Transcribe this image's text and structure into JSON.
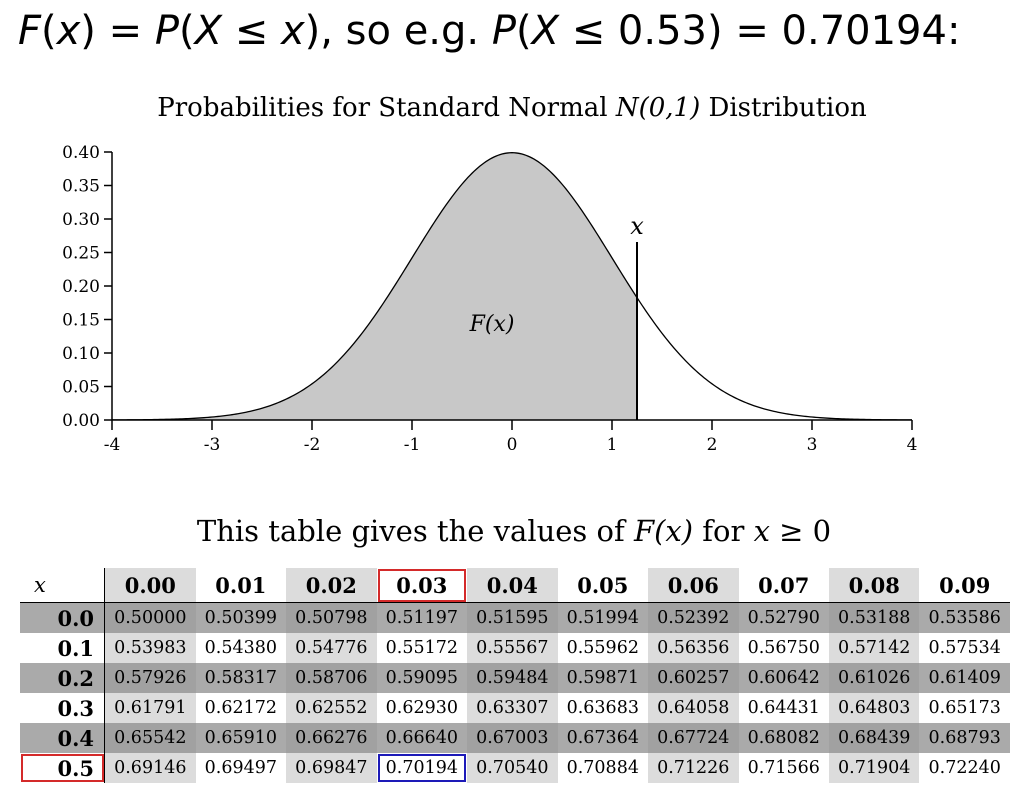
{
  "header": {
    "parts": [
      "F",
      "(",
      "x",
      ") = ",
      "P",
      "(",
      "X",
      " ≤ ",
      "x",
      "), so e.g. ",
      "P",
      "(",
      "X",
      " ≤ 0.53) = 0.70194:"
    ]
  },
  "chart_data": {
    "type": "area",
    "title_part1": "Probabilities for Standard Normal ",
    "title_part2": "N(0,1)",
    "title_part3": " Distribution",
    "xlim": [
      -4,
      4
    ],
    "ylim": [
      0,
      0.4
    ],
    "x_ticks": [
      -4,
      -3,
      -2,
      -1,
      0,
      1,
      2,
      3,
      4
    ],
    "x_tick_labels": [
      "-4",
      "-3",
      "-2",
      "-1",
      "0",
      "1",
      "2",
      "3",
      "4"
    ],
    "y_ticks": [
      0,
      0.05,
      0.1,
      0.15,
      0.2,
      0.25,
      0.3,
      0.35,
      0.4
    ],
    "y_tick_labels": [
      "0.00",
      "0.05",
      "0.10",
      "0.15",
      "0.20",
      "0.25",
      "0.30",
      "0.35",
      "0.40"
    ],
    "series": [
      {
        "x": [
          -4,
          -3.5,
          -3,
          -2.5,
          -2,
          -1.5,
          -1,
          -0.5,
          0,
          0.5,
          1,
          1.5,
          2,
          2.5,
          3,
          3.5,
          4
        ],
        "values": [
          0.0001,
          0.0009,
          0.0044,
          0.0175,
          0.054,
          0.1295,
          0.242,
          0.3521,
          0.3989,
          0.3521,
          0.242,
          0.1295,
          0.054,
          0.0175,
          0.0044,
          0.0009,
          0.0001
        ]
      }
    ],
    "shaded_to_x": 1.25,
    "marker_label": "x",
    "area_label": "F(x)",
    "colors": {
      "fill": "#c8c8c8",
      "line": "#000000"
    }
  },
  "table": {
    "title_part1": "This table gives the values of ",
    "title_part2": "F(x)",
    "title_part3": " for ",
    "title_part4": "x",
    "title_part5": " ≥ 0",
    "corner_label": "x",
    "columns": [
      "0.00",
      "0.01",
      "0.02",
      "0.03",
      "0.04",
      "0.05",
      "0.06",
      "0.07",
      "0.08",
      "0.09"
    ],
    "rows": [
      {
        "label": "0.0",
        "values": [
          "0.50000",
          "0.50399",
          "0.50798",
          "0.51197",
          "0.51595",
          "0.51994",
          "0.52392",
          "0.52790",
          "0.53188",
          "0.53586"
        ]
      },
      {
        "label": "0.1",
        "values": [
          "0.53983",
          "0.54380",
          "0.54776",
          "0.55172",
          "0.55567",
          "0.55962",
          "0.56356",
          "0.56750",
          "0.57142",
          "0.57534"
        ]
      },
      {
        "label": "0.2",
        "values": [
          "0.57926",
          "0.58317",
          "0.58706",
          "0.59095",
          "0.59484",
          "0.59871",
          "0.60257",
          "0.60642",
          "0.61026",
          "0.61409"
        ]
      },
      {
        "label": "0.3",
        "values": [
          "0.61791",
          "0.62172",
          "0.62552",
          "0.62930",
          "0.63307",
          "0.63683",
          "0.64058",
          "0.64431",
          "0.64803",
          "0.65173"
        ]
      },
      {
        "label": "0.4",
        "values": [
          "0.65542",
          "0.65910",
          "0.66276",
          "0.66640",
          "0.67003",
          "0.67364",
          "0.67724",
          "0.68082",
          "0.68439",
          "0.68793"
        ]
      },
      {
        "label": "0.5",
        "values": [
          "0.69146",
          "0.69497",
          "0.69847",
          "0.70194",
          "0.70540",
          "0.70884",
          "0.71226",
          "0.71566",
          "0.71904",
          "0.72240"
        ]
      }
    ],
    "highlight": {
      "column": "0.03",
      "row": "0.5",
      "cell": "0.70194"
    },
    "colors": {
      "column_highlight": "#d42a2a",
      "row_highlight": "#d42a2a",
      "cell_highlight": "#1d1ab8"
    }
  }
}
